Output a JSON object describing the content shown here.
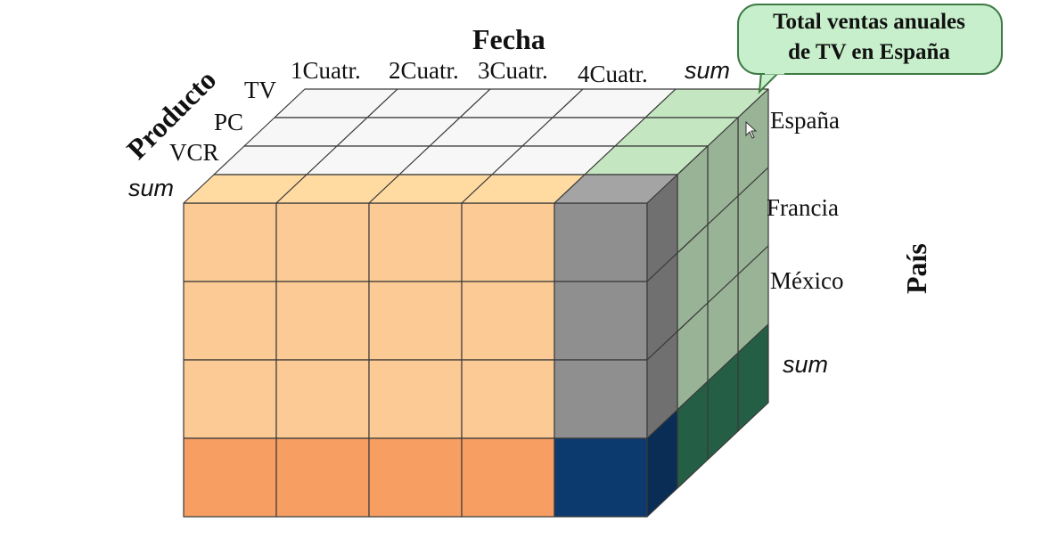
{
  "labels": {
    "product_axis": "Producto",
    "date_axis": "Fecha",
    "country_axis": "País",
    "quarters": [
      "1Cuatr.",
      "2Cuatr.",
      "3Cuatr.",
      "4Cuatr."
    ],
    "date_sum": "sum",
    "products": [
      "TV",
      "PC",
      "VCR"
    ],
    "product_sum": "sum",
    "countries": [
      "España",
      "Francia",
      "México"
    ],
    "country_sum": "sum"
  },
  "callout": {
    "line1": "Total ventas anuales",
    "line2": "de TV en España"
  },
  "colors": {
    "front_cell": "#fcca95",
    "front_sum_row": "#f79f62",
    "gray_sum_column": "#8f8f8f",
    "total_cell": "#0d3a6e",
    "light_green_side": "#c4e6c0",
    "dark_green_sum": "#2e7a58",
    "top_white": "#f7f7f7",
    "callout_fill": "#c7efcb"
  }
}
